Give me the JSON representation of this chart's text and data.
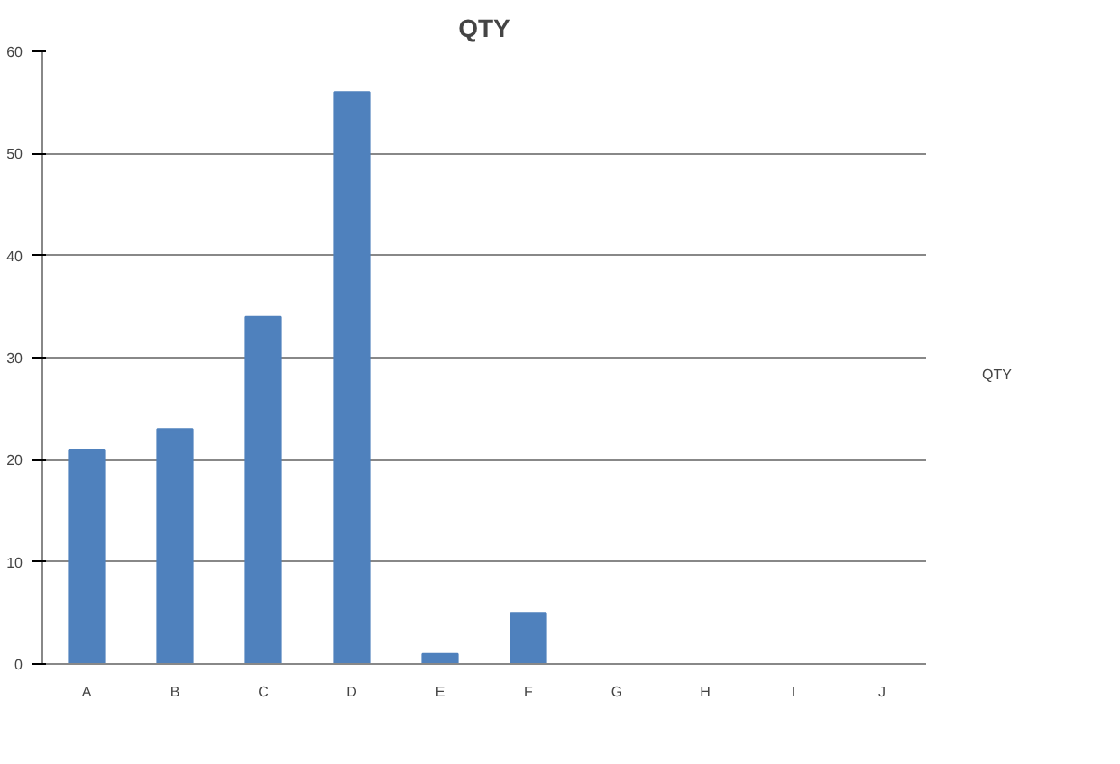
{
  "chart_data": {
    "type": "bar",
    "title": "QTY",
    "categories": [
      "A",
      "B",
      "C",
      "D",
      "E",
      "F",
      "G",
      "H",
      "I",
      "J"
    ],
    "series": [
      {
        "name": "QTY",
        "color": "#4f81bd",
        "values": [
          21,
          23,
          34,
          56,
          1,
          5,
          0,
          0,
          0,
          0
        ]
      }
    ],
    "ylim": [
      0,
      60
    ],
    "yticks": [
      0,
      10,
      20,
      30,
      40,
      50,
      60
    ],
    "grid": "y",
    "legend": "right"
  }
}
